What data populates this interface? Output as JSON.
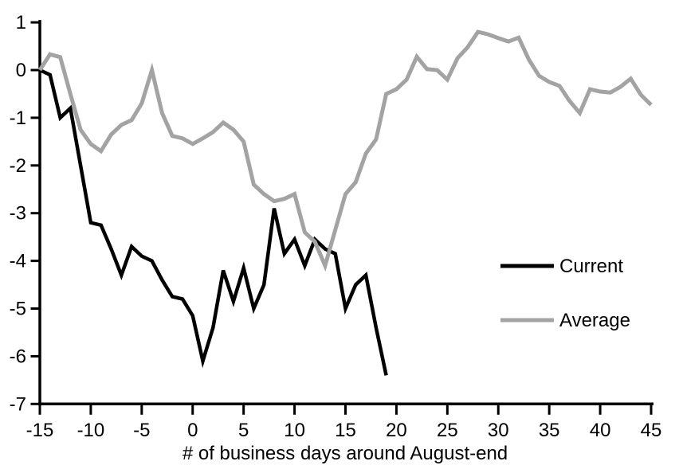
{
  "chart_data": {
    "type": "line",
    "title": "",
    "xlabel": "# of business days around August-end",
    "ylabel": "",
    "xlim": [
      -15,
      45
    ],
    "ylim": [
      -7,
      1
    ],
    "x_ticks": [
      -15,
      -10,
      -5,
      0,
      5,
      10,
      15,
      20,
      25,
      30,
      35,
      40,
      45
    ],
    "y_ticks": [
      1,
      0,
      -1,
      -2,
      -3,
      -4,
      -5,
      -6,
      -7
    ],
    "grid": false,
    "legend_position": "middle-right",
    "series": [
      {
        "name": "Current",
        "color": "#000000",
        "x": [
          -15,
          -14,
          -13,
          -12,
          -11,
          -10,
          -9,
          -8,
          -7,
          -6,
          -5,
          -4,
          -3,
          -2,
          -1,
          0,
          1,
          2,
          3,
          4,
          5,
          6,
          7,
          8,
          9,
          10,
          11,
          12,
          13,
          14,
          15,
          16,
          17,
          18,
          19
        ],
        "values": [
          0,
          -0.1,
          -1.0,
          -0.8,
          -2.0,
          -3.2,
          -3.25,
          -3.75,
          -4.3,
          -3.7,
          -3.9,
          -4.0,
          -4.4,
          -4.75,
          -4.8,
          -5.15,
          -6.1,
          -5.4,
          -4.2,
          -4.85,
          -4.15,
          -5.0,
          -4.5,
          -2.9,
          -3.85,
          -3.55,
          -4.1,
          -3.55,
          -3.75,
          -3.85,
          -5.0,
          -4.5,
          -4.3,
          -5.4,
          -6.4
        ]
      },
      {
        "name": "Average",
        "color": "#a3a3a3",
        "x": [
          -15,
          -14,
          -13,
          -12,
          -11,
          -10,
          -9,
          -8,
          -7,
          -6,
          -5,
          -4,
          -3,
          -2,
          -1,
          0,
          1,
          2,
          3,
          4,
          5,
          6,
          7,
          8,
          9,
          10,
          11,
          12,
          13,
          14,
          15,
          16,
          17,
          18,
          19,
          20,
          21,
          22,
          23,
          24,
          25,
          26,
          27,
          28,
          29,
          30,
          31,
          32,
          33,
          34,
          35,
          36,
          37,
          38,
          39,
          40,
          41,
          42,
          43,
          44,
          45
        ],
        "values": [
          0,
          0.33,
          0.27,
          -0.5,
          -1.25,
          -1.55,
          -1.7,
          -1.35,
          -1.15,
          -1.05,
          -0.7,
          0,
          -0.9,
          -1.38,
          -1.43,
          -1.55,
          -1.43,
          -1.3,
          -1.1,
          -1.25,
          -1.5,
          -2.4,
          -2.6,
          -2.75,
          -2.7,
          -2.6,
          -3.4,
          -3.6,
          -4.1,
          -3.35,
          -2.6,
          -2.35,
          -1.75,
          -1.45,
          -0.5,
          -0.4,
          -0.2,
          0.28,
          0.02,
          0,
          -0.2,
          0.25,
          0.48,
          0.8,
          0.75,
          0.67,
          0.6,
          0.68,
          0.22,
          -0.12,
          -0.25,
          -0.33,
          -0.65,
          -0.9,
          -0.4,
          -0.45,
          -0.47,
          -0.35,
          -0.18,
          -0.52,
          -0.73
        ]
      }
    ]
  },
  "legend": {
    "items": [
      {
        "label": "Current",
        "color": "#000000"
      },
      {
        "label": "Average",
        "color": "#a3a3a3"
      }
    ]
  },
  "colors": {
    "axis": "#000000",
    "background": "#ffffff",
    "current_line": "#000000",
    "average_line": "#a3a3a3"
  }
}
